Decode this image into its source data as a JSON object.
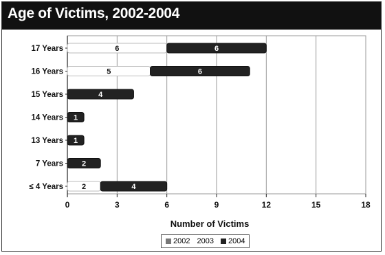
{
  "title": "Age of Victims, 2002-2004",
  "chart_data": {
    "type": "bar",
    "orientation": "horizontal",
    "categories": [
      "17 Years",
      "16 Years",
      "15 Years",
      "14 Years",
      "13 Years",
      "7 Years",
      "≤ 4 Years"
    ],
    "series": [
      {
        "name": "2002",
        "values": [
          0,
          0,
          0,
          0,
          0,
          0,
          0
        ],
        "color": "#777777"
      },
      {
        "name": "2003",
        "values": [
          6,
          5,
          0,
          0,
          0,
          0,
          2
        ],
        "color": "#ffffff"
      },
      {
        "name": "2004",
        "values": [
          6,
          6,
          4,
          1,
          1,
          2,
          4
        ],
        "color": "#222222"
      }
    ],
    "xlabel": "Number of Victims",
    "ylabel": "",
    "xlim": [
      0,
      18
    ],
    "xticks": [
      "0",
      "3",
      "6",
      "9",
      "12",
      "15",
      "18"
    ],
    "grid": true,
    "legend_position": "bottom"
  }
}
